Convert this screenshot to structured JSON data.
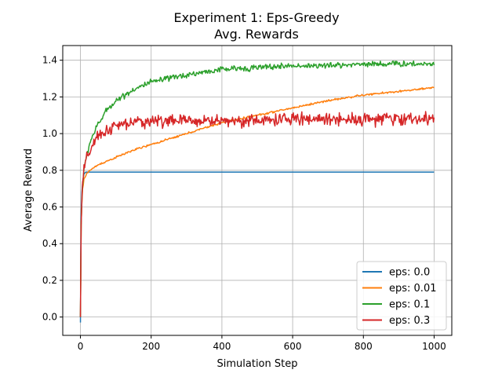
{
  "chart_data": {
    "type": "line",
    "title": "Experiment 1: Eps-Greedy",
    "subtitle": "Avg. Rewards",
    "xlabel": "Simulation Step",
    "ylabel": "Average Reward",
    "xlim": [
      -50,
      1050
    ],
    "ylim": [
      -0.1,
      1.48
    ],
    "xticks": [
      0,
      200,
      400,
      600,
      800,
      1000
    ],
    "yticks": [
      0.0,
      0.2,
      0.4,
      0.6,
      0.8,
      1.0,
      1.2,
      1.4
    ],
    "xtick_labels": [
      "0",
      "200",
      "400",
      "600",
      "800",
      "1000"
    ],
    "ytick_labels": [
      "0.0",
      "0.2",
      "0.4",
      "0.6",
      "0.8",
      "1.0",
      "1.2",
      "1.4"
    ],
    "grid": true,
    "legend_position": "lower-right",
    "series": [
      {
        "name": "eps: 0.0",
        "color": "#1f77b4",
        "noise": 0.0,
        "x": [
          0,
          1,
          2,
          4,
          6,
          8,
          10,
          15,
          20,
          30,
          50,
          100,
          200,
          400,
          600,
          800,
          1000
        ],
        "y": [
          -0.03,
          0.35,
          0.55,
          0.68,
          0.73,
          0.76,
          0.78,
          0.79,
          0.79,
          0.79,
          0.79,
          0.79,
          0.79,
          0.79,
          0.79,
          0.79,
          0.79
        ]
      },
      {
        "name": "eps: 0.01",
        "color": "#ff7f0e",
        "noise": 0.004,
        "x": [
          0,
          2,
          5,
          10,
          20,
          50,
          100,
          150,
          200,
          300,
          400,
          500,
          600,
          700,
          800,
          900,
          1000
        ],
        "y": [
          0.0,
          0.5,
          0.68,
          0.75,
          0.79,
          0.83,
          0.87,
          0.91,
          0.94,
          1.0,
          1.06,
          1.1,
          1.14,
          1.18,
          1.21,
          1.23,
          1.25
        ]
      },
      {
        "name": "eps: 0.1",
        "color": "#2ca02c",
        "noise": 0.012,
        "x": [
          0,
          2,
          5,
          10,
          20,
          30,
          50,
          75,
          100,
          150,
          200,
          300,
          400,
          500,
          600,
          700,
          800,
          900,
          1000
        ],
        "y": [
          0.0,
          0.5,
          0.7,
          0.8,
          0.9,
          0.97,
          1.05,
          1.13,
          1.18,
          1.24,
          1.28,
          1.32,
          1.35,
          1.36,
          1.37,
          1.37,
          1.38,
          1.38,
          1.38
        ]
      },
      {
        "name": "eps: 0.3",
        "color": "#d62728",
        "noise": 0.025,
        "x": [
          0,
          2,
          5,
          10,
          20,
          30,
          50,
          75,
          100,
          150,
          200,
          300,
          400,
          500,
          600,
          700,
          800,
          900,
          1000
        ],
        "y": [
          0.0,
          0.5,
          0.7,
          0.8,
          0.88,
          0.92,
          0.98,
          1.02,
          1.04,
          1.06,
          1.07,
          1.07,
          1.07,
          1.07,
          1.08,
          1.08,
          1.08,
          1.08,
          1.08
        ]
      }
    ]
  }
}
